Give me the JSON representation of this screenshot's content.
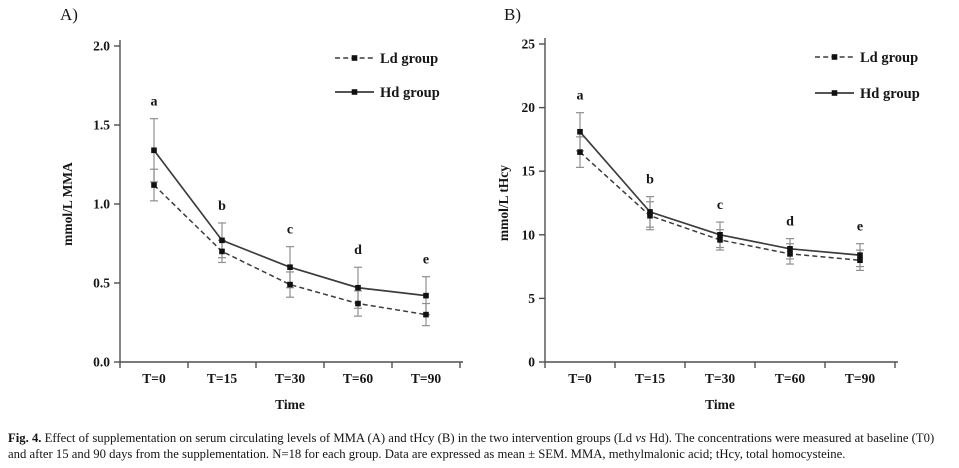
{
  "figure": {
    "caption": {
      "label": "Fig. 4.",
      "text_before_italic": " Effect of supplementation on serum circulating levels of MMA (A) and tHcy (B) in the two intervention groups (Ld ",
      "italic": "vs",
      "text_after_italic": " Hd). The concentrations were measured at baseline (T0) and after 15 and 90 days from the supplementation. N=18 for each group. Data are expressed as mean ± SEM. MMA, methylmalonic acid; tHcy, total homocysteine."
    }
  },
  "chart_data": [
    {
      "type": "line",
      "panel_label": "A)",
      "x": [
        "T=0",
        "T=15",
        "T=30",
        "T=60",
        "T=90"
      ],
      "xlabel": "Time",
      "ylabel": "mmol/L MMA",
      "ylim": [
        0.0,
        2.0
      ],
      "yticks": [
        "0.0",
        "0.5",
        "1.0",
        "1.5",
        "2.0"
      ],
      "grid": false,
      "legend_position": "top-right",
      "error_bars": "SEM",
      "series": [
        {
          "name": "Ld group",
          "line_style": "dashed",
          "marker": "square",
          "values": [
            1.12,
            0.7,
            0.49,
            0.37,
            0.3
          ],
          "sem": [
            0.1,
            0.07,
            0.08,
            0.08,
            0.07
          ]
        },
        {
          "name": "Hd group",
          "line_style": "solid",
          "marker": "square",
          "values": [
            1.34,
            0.77,
            0.6,
            0.47,
            0.42
          ],
          "sem": [
            0.2,
            0.11,
            0.13,
            0.13,
            0.12
          ]
        }
      ],
      "significance_letters": [
        "a",
        "b",
        "c",
        "d",
        "e"
      ]
    },
    {
      "type": "line",
      "panel_label": "B)",
      "x": [
        "T=0",
        "T=15",
        "T=30",
        "T=60",
        "T=90"
      ],
      "xlabel": "Time",
      "ylabel": "mmol/L tHcy",
      "ylim": [
        0,
        25
      ],
      "yticks": [
        "0",
        "5",
        "10",
        "15",
        "20",
        "25"
      ],
      "grid": false,
      "legend_position": "top-right",
      "error_bars": "SEM",
      "series": [
        {
          "name": "Ld group",
          "line_style": "dashed",
          "marker": "square",
          "values": [
            16.5,
            11.5,
            9.6,
            8.5,
            8.0
          ],
          "sem": [
            1.2,
            1.1,
            0.8,
            0.8,
            0.8
          ]
        },
        {
          "name": "Hd group",
          "line_style": "solid",
          "marker": "square",
          "values": [
            18.1,
            11.8,
            10.0,
            8.9,
            8.4
          ],
          "sem": [
            1.5,
            1.2,
            1.0,
            0.8,
            0.9
          ]
        }
      ],
      "significance_letters": [
        "a",
        "b",
        "c",
        "d",
        "e"
      ]
    }
  ],
  "colors": {
    "line": "#3c3c3c",
    "marker": "#111111",
    "error_bar": "#8f8f8f",
    "axis": "#4f4f4f",
    "text": "#161616"
  }
}
